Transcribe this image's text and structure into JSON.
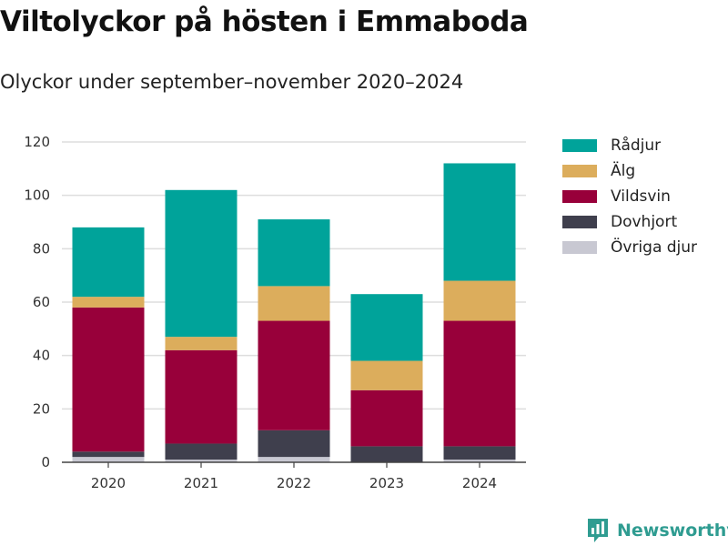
{
  "header": {
    "title": "Viltolyckor på hösten i Emmaboda",
    "subtitle": "Olyckor under september–november 2020–2024"
  },
  "brand": {
    "name": "Newsworthy"
  },
  "colors": {
    "radjur": "#00a39a",
    "alg": "#dcad5c",
    "vildsvin": "#98003a",
    "dovhjort": "#3f3f4d",
    "ovriga": "#c8c8d2",
    "brand": "#2f9c91"
  },
  "chart_data": {
    "type": "bar",
    "stacked": true,
    "categories": [
      "2020",
      "2021",
      "2022",
      "2023",
      "2024"
    ],
    "series": [
      {
        "name": "Övriga djur",
        "key": "ovriga",
        "values": [
          2,
          1,
          2,
          0,
          1
        ]
      },
      {
        "name": "Dovhjort",
        "key": "dovhjort",
        "values": [
          2,
          6,
          10,
          6,
          5
        ]
      },
      {
        "name": "Vildsvin",
        "key": "vildsvin",
        "values": [
          54,
          35,
          41,
          21,
          47
        ]
      },
      {
        "name": "Älg",
        "key": "alg",
        "values": [
          4,
          5,
          13,
          11,
          15
        ]
      },
      {
        "name": "Rådjur",
        "key": "radjur",
        "values": [
          26,
          55,
          25,
          25,
          44
        ]
      }
    ],
    "legend_order": [
      "Rådjur",
      "Älg",
      "Vildsvin",
      "Dovhjort",
      "Övriga djur"
    ],
    "yticks": [
      0,
      20,
      40,
      60,
      80,
      100,
      120
    ],
    "ylim": [
      0,
      120
    ],
    "xlabel": "",
    "ylabel": "",
    "grid": true,
    "legend_position": "right"
  }
}
